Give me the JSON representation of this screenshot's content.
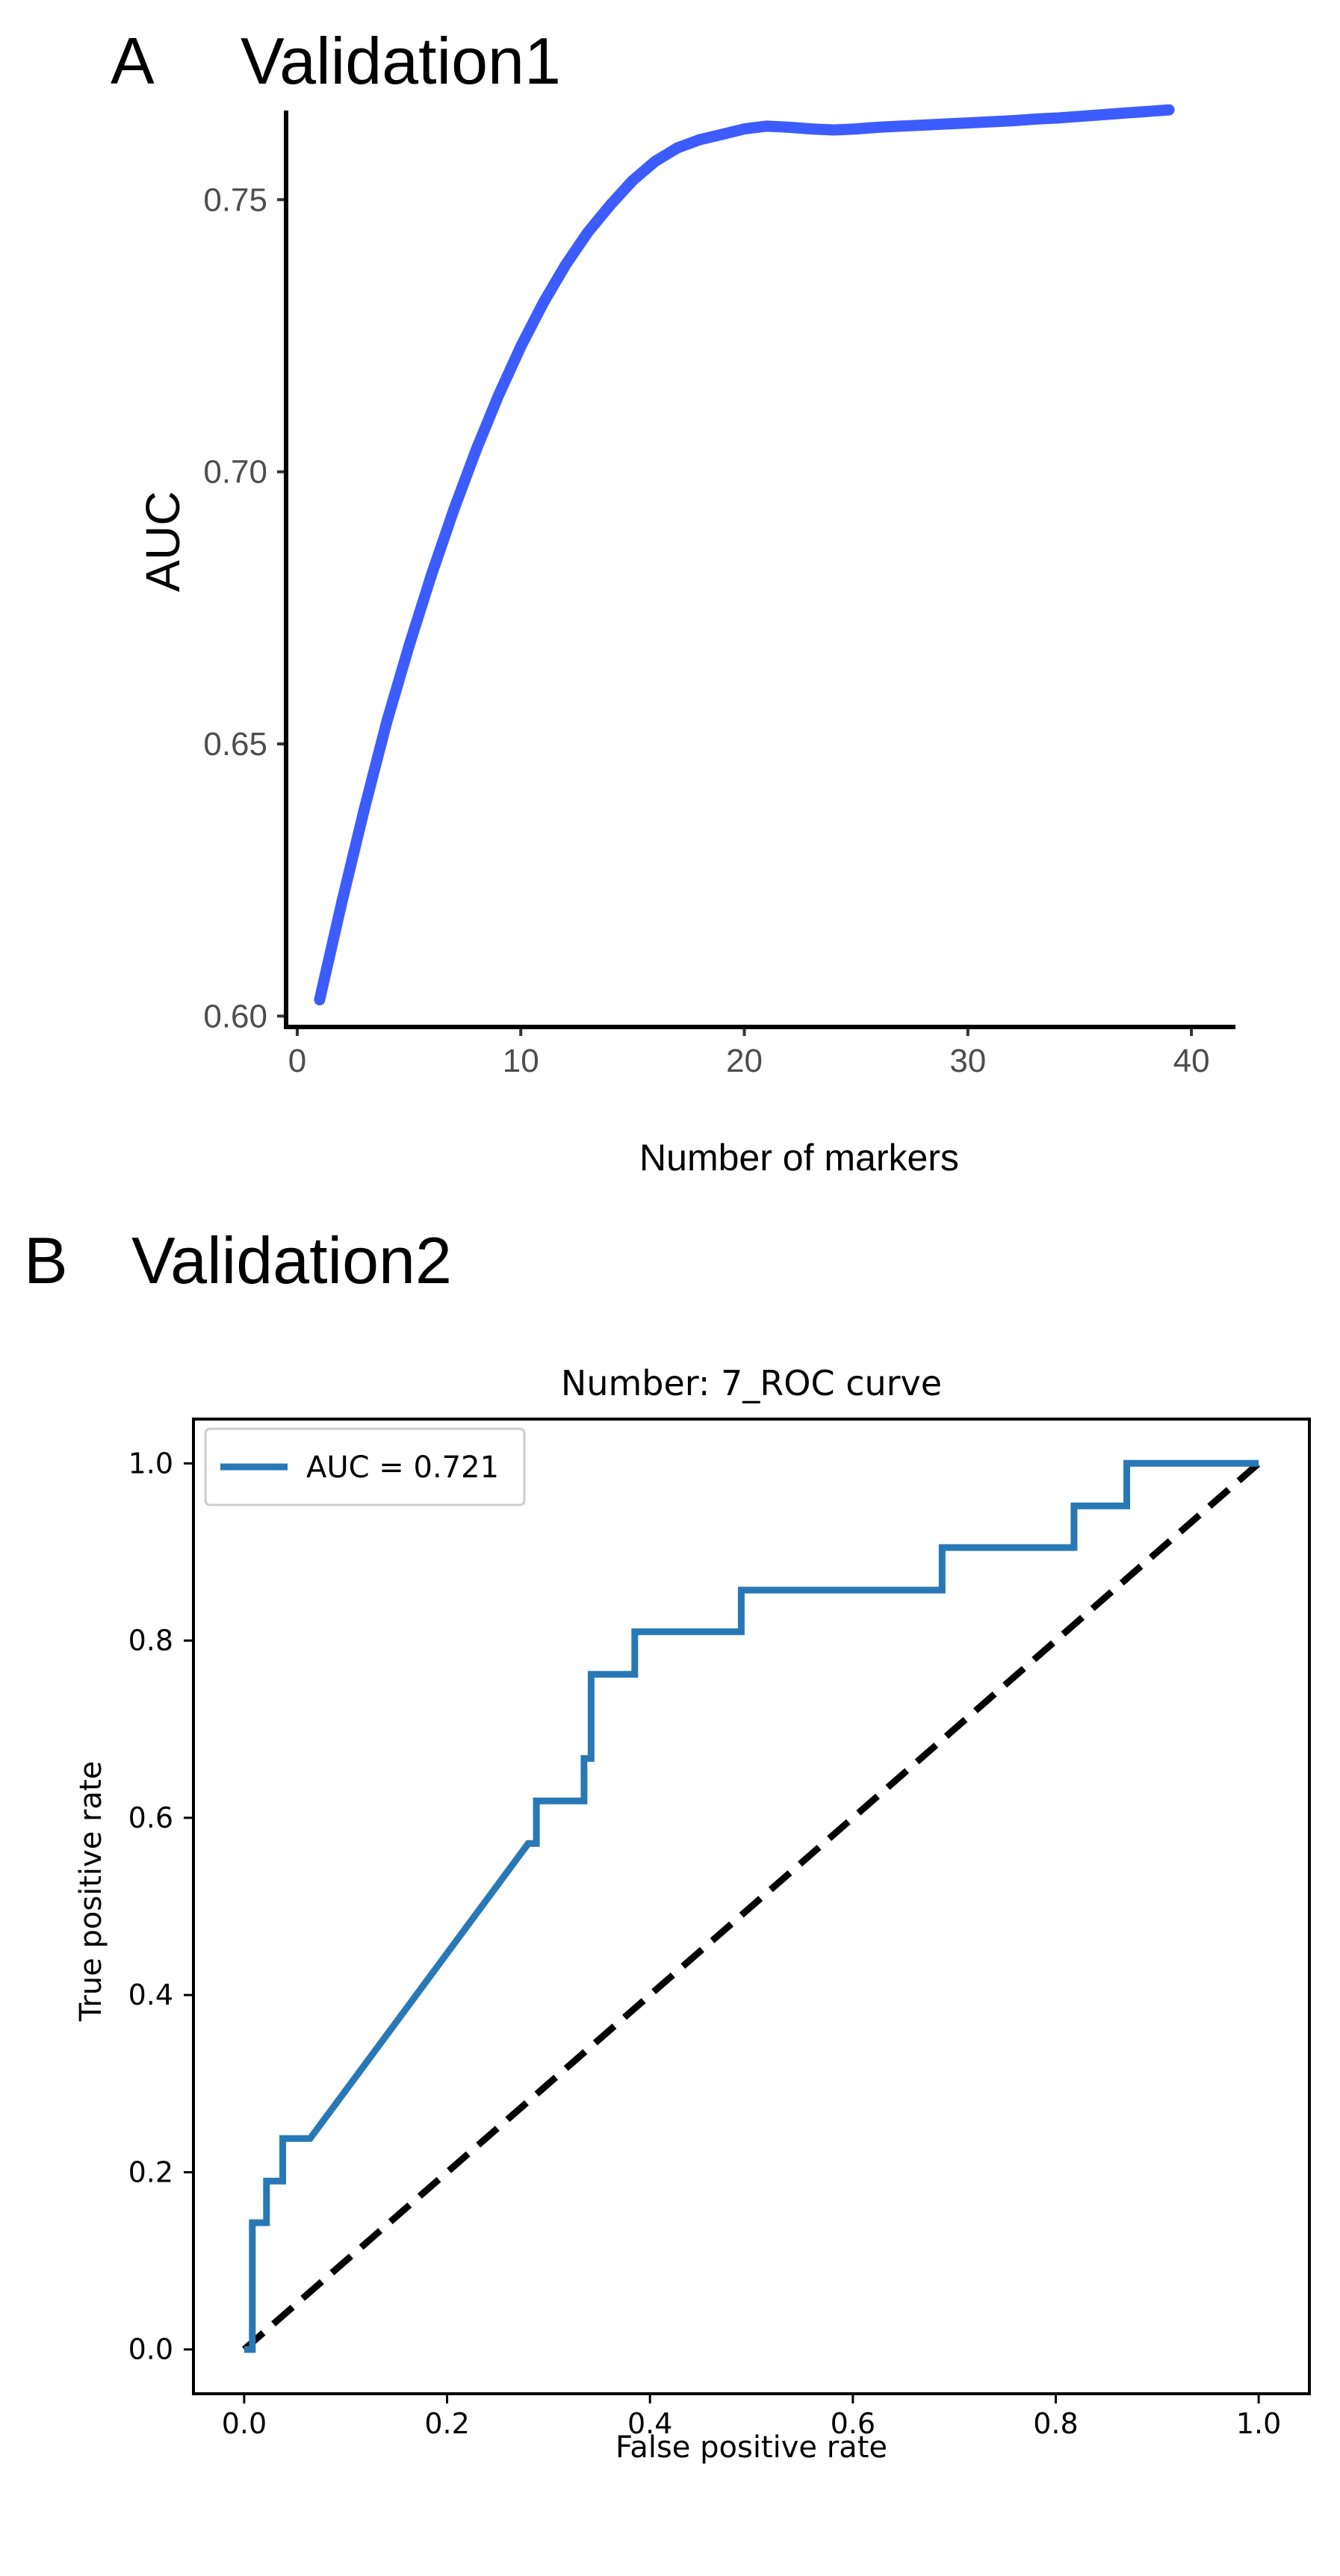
{
  "panel_a": {
    "letter": "A",
    "title": "Validation1"
  },
  "panel_b": {
    "letter": "B",
    "title": "Validation2"
  },
  "colors": {
    "auc_curve": "#3d5cff",
    "roc_curve": "#2878b5",
    "diagonal": "#000000",
    "axis": "#000000"
  },
  "chart_data": [
    {
      "type": "line",
      "title": "",
      "xlabel": "Number of markers",
      "ylabel": "AUC",
      "xlim": [
        -0.5,
        41
      ],
      "ylim": [
        0.598,
        0.765
      ],
      "x_ticks": [
        0,
        10,
        20,
        30,
        40
      ],
      "x_tick_labels": [
        "0",
        "10",
        "20",
        "30",
        "40"
      ],
      "y_ticks": [
        0.6,
        0.65,
        0.7,
        0.75
      ],
      "y_tick_labels": [
        "0.60",
        "0.65",
        "0.70",
        "0.75"
      ],
      "grid": false,
      "series": [
        {
          "x": [
            1,
            2,
            3,
            4,
            5,
            6,
            7,
            8,
            9,
            10,
            11,
            12,
            13,
            14,
            15,
            16,
            17,
            18,
            19,
            20,
            21,
            22,
            23,
            24,
            25,
            26,
            27,
            28,
            29,
            30,
            31,
            32,
            33,
            34,
            35,
            36,
            37,
            38,
            39
          ],
          "y": [
            0.603,
            0.621,
            0.638,
            0.654,
            0.668,
            0.681,
            0.693,
            0.704,
            0.714,
            0.723,
            0.731,
            0.738,
            0.744,
            0.749,
            0.7535,
            0.757,
            0.7595,
            0.761,
            0.762,
            0.763,
            0.7635,
            0.7633,
            0.763,
            0.7628,
            0.763,
            0.7633,
            0.7635,
            0.7637,
            0.7639,
            0.7641,
            0.7643,
            0.7645,
            0.7648,
            0.765,
            0.7653,
            0.7656,
            0.7659,
            0.7662,
            0.7665
          ]
        }
      ]
    },
    {
      "type": "line",
      "title": "Number: 7_ROC curve",
      "xlabel": "False positive rate",
      "ylabel": "True positive rate",
      "xlim": [
        -0.05,
        1.05
      ],
      "ylim": [
        -0.05,
        1.05
      ],
      "x_ticks": [
        0.0,
        0.2,
        0.4,
        0.6,
        0.8,
        1.0
      ],
      "x_tick_labels": [
        "0.0",
        "0.2",
        "0.4",
        "0.6",
        "0.8",
        "1.0"
      ],
      "y_ticks": [
        0.0,
        0.2,
        0.4,
        0.6,
        0.8,
        1.0
      ],
      "y_tick_labels": [
        "0.0",
        "0.2",
        "0.4",
        "0.6",
        "0.8",
        "1.0"
      ],
      "grid": false,
      "legend_position": "top-left",
      "series": [
        {
          "name": "AUC = 0.721",
          "x": [
            0.0,
            0.008,
            0.008,
            0.008,
            0.022,
            0.022,
            0.038,
            0.038,
            0.065,
            0.28,
            0.288,
            0.288,
            0.335,
            0.335,
            0.342,
            0.342,
            0.385,
            0.385,
            0.49,
            0.49,
            0.688,
            0.688,
            0.818,
            0.818,
            0.87,
            0.87,
            1.0
          ],
          "y": [
            0.0,
            0.0,
            0.095,
            0.143,
            0.143,
            0.19,
            0.19,
            0.238,
            0.238,
            0.571,
            0.571,
            0.619,
            0.619,
            0.667,
            0.667,
            0.762,
            0.762,
            0.81,
            0.81,
            0.857,
            0.857,
            0.905,
            0.905,
            0.952,
            0.952,
            1.0,
            1.0
          ]
        },
        {
          "name": "",
          "style": "dashed",
          "x": [
            0.0,
            1.0
          ],
          "y": [
            0.0,
            1.0
          ]
        }
      ]
    }
  ]
}
